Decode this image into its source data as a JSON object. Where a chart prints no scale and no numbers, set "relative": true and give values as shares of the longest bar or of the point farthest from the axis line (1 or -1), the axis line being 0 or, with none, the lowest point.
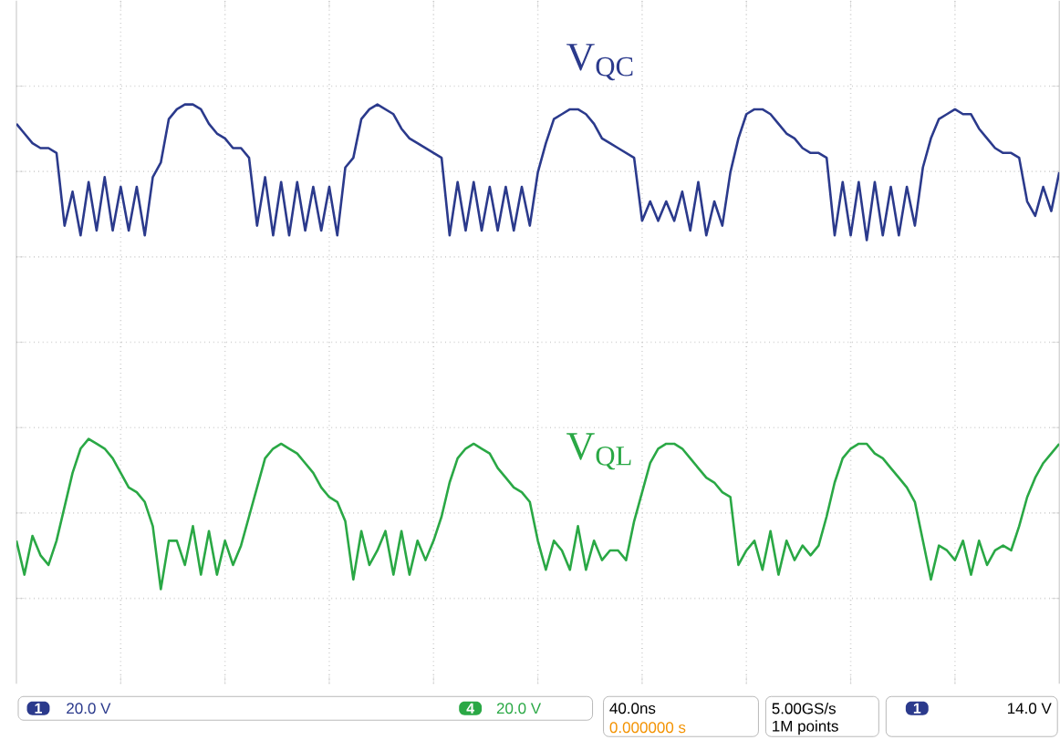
{
  "chart_data": {
    "type": "line",
    "relative": true,
    "grid": true,
    "marker": "none",
    "line_style": "solid",
    "categories": [
      null,
      null,
      null,
      null,
      null,
      null,
      null,
      null,
      null,
      null,
      null,
      null,
      null,
      null,
      null,
      null,
      null,
      null,
      null,
      null,
      null,
      null,
      null,
      null,
      null,
      null,
      null,
      null,
      null,
      null,
      null,
      null,
      null,
      null,
      null,
      null,
      null,
      null,
      null,
      null,
      null,
      null,
      null,
      null,
      null,
      null,
      null,
      null,
      null,
      null,
      null,
      null,
      null,
      null,
      null,
      null,
      null,
      null,
      null,
      null,
      null,
      null,
      null,
      null,
      null,
      null,
      null,
      null,
      null,
      null,
      null,
      null,
      null,
      null,
      null,
      null,
      null,
      null,
      null,
      null,
      null,
      null,
      null,
      null,
      null,
      null,
      null,
      null,
      null,
      null,
      null,
      null,
      null,
      null,
      null,
      null,
      null,
      null,
      null,
      null,
      null,
      null,
      null,
      null,
      null,
      null,
      null,
      null,
      null,
      null,
      null,
      null,
      null,
      null,
      null,
      null,
      null,
      null,
      null,
      null,
      null,
      null,
      null,
      null,
      null,
      null,
      null,
      null,
      null,
      null,
      null
    ],
    "series": [
      {
        "name": "V$_{QC}$",
        "color": "#2b3a8c",
        "values": [
          0.96,
          0.94,
          0.92,
          0.91,
          0.91,
          0.9,
          0.75,
          0.82,
          0.73,
          0.84,
          0.74,
          0.85,
          0.74,
          0.83,
          0.74,
          0.83,
          0.73,
          0.85,
          0.88,
          0.97,
          0.99,
          1.0,
          1.0,
          0.99,
          0.96,
          0.94,
          0.93,
          0.91,
          0.91,
          0.89,
          0.75,
          0.85,
          0.73,
          0.84,
          0.73,
          0.84,
          0.74,
          0.83,
          0.74,
          0.83,
          0.73,
          0.87,
          0.89,
          0.97,
          0.99,
          1.0,
          0.99,
          0.98,
          0.95,
          0.93,
          0.92,
          0.91,
          0.9,
          0.89,
          0.73,
          0.84,
          0.74,
          0.84,
          0.74,
          0.83,
          0.74,
          0.83,
          0.74,
          0.83,
          0.75,
          0.86,
          0.92,
          0.97,
          0.98,
          0.99,
          0.99,
          0.98,
          0.96,
          0.93,
          0.92,
          0.91,
          0.9,
          0.89,
          0.76,
          0.8,
          0.76,
          0.8,
          0.76,
          0.82,
          0.74,
          0.84,
          0.73,
          0.8,
          0.75,
          0.86,
          0.93,
          0.98,
          0.99,
          0.99,
          0.98,
          0.96,
          0.94,
          0.93,
          0.91,
          0.9,
          0.9,
          0.89,
          0.73,
          0.84,
          0.73,
          0.84,
          0.72,
          0.84,
          0.73,
          0.83,
          0.73,
          0.83,
          0.75,
          0.87,
          0.93,
          0.97,
          0.98,
          0.99,
          0.98,
          0.98,
          0.95,
          0.93,
          0.91,
          0.9,
          0.9,
          0.89,
          0.8,
          0.77,
          0.83,
          0.78,
          0.86
        ]
      },
      {
        "name": "V$_{QL}$",
        "color": "#2aa845",
        "values": [
          0.1,
          0.03,
          0.11,
          0.07,
          0.05,
          0.1,
          0.17,
          0.24,
          0.29,
          0.31,
          0.3,
          0.29,
          0.27,
          0.24,
          0.21,
          0.2,
          0.18,
          0.13,
          0.0,
          0.1,
          0.1,
          0.05,
          0.13,
          0.03,
          0.12,
          0.03,
          0.1,
          0.05,
          0.09,
          0.15,
          0.21,
          0.27,
          0.29,
          0.3,
          0.29,
          0.28,
          0.26,
          0.24,
          0.21,
          0.19,
          0.18,
          0.14,
          0.02,
          0.12,
          0.05,
          0.08,
          0.12,
          0.03,
          0.12,
          0.03,
          0.1,
          0.06,
          0.1,
          0.15,
          0.22,
          0.27,
          0.29,
          0.3,
          0.29,
          0.28,
          0.25,
          0.23,
          0.21,
          0.2,
          0.18,
          0.1,
          0.04,
          0.1,
          0.08,
          0.04,
          0.13,
          0.04,
          0.1,
          0.06,
          0.08,
          0.08,
          0.06,
          0.14,
          0.2,
          0.26,
          0.29,
          0.3,
          0.3,
          0.29,
          0.27,
          0.25,
          0.23,
          0.22,
          0.2,
          0.19,
          0.05,
          0.08,
          0.1,
          0.04,
          0.12,
          0.03,
          0.1,
          0.06,
          0.09,
          0.07,
          0.09,
          0.15,
          0.22,
          0.27,
          0.29,
          0.3,
          0.3,
          0.28,
          0.27,
          0.25,
          0.23,
          0.21,
          0.18,
          0.1,
          0.02,
          0.09,
          0.08,
          0.06,
          0.1,
          0.03,
          0.1,
          0.05,
          0.08,
          0.09,
          0.08,
          0.13,
          0.19,
          0.23,
          0.26,
          0.28,
          0.3
        ]
      }
    ],
    "annotations": [
      "1",
      "20.0 V",
      "4",
      "20.0 V",
      "40.0ns",
      "0.000000 s",
      "5.00GS/s",
      "1M points",
      "1",
      "14.0 V"
    ]
  }
}
